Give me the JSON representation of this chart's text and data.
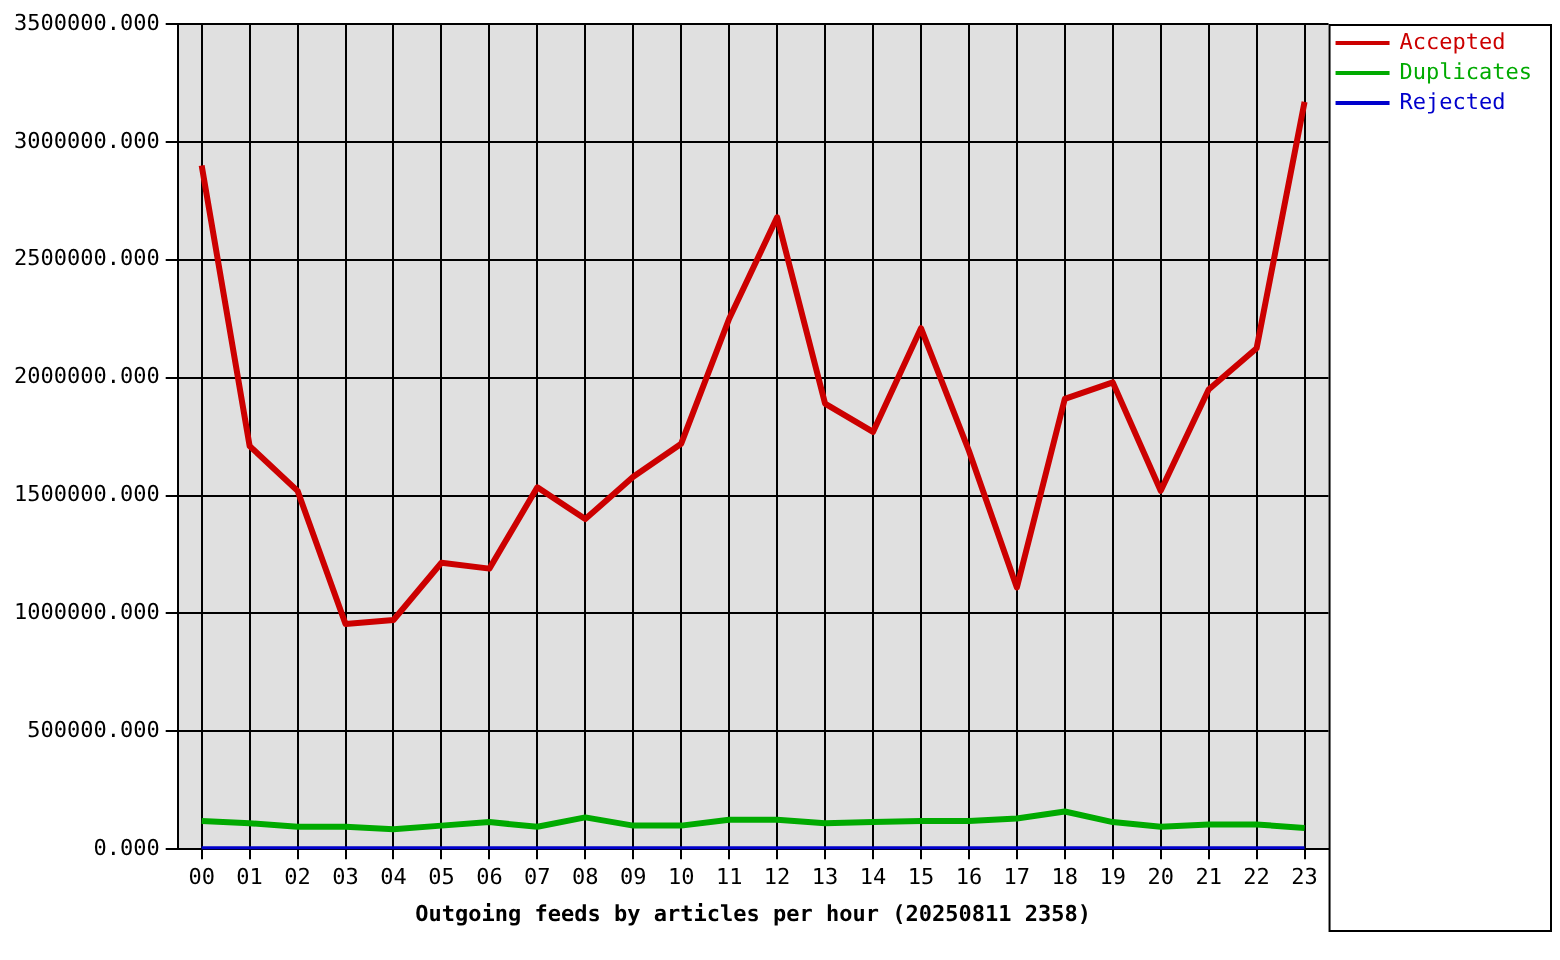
{
  "chart_data": {
    "type": "line",
    "xlabel": "Outgoing feeds by articles per hour (20250811 2358)",
    "categories": [
      "00",
      "01",
      "02",
      "03",
      "04",
      "05",
      "06",
      "07",
      "08",
      "09",
      "10",
      "11",
      "12",
      "13",
      "14",
      "15",
      "16",
      "17",
      "18",
      "19",
      "20",
      "21",
      "22",
      "23"
    ],
    "series": [
      {
        "name": "Accepted",
        "color": "#cc0000",
        "values": [
          2900000,
          1710000,
          1520000,
          955000,
          972000,
          1215000,
          1190000,
          1535000,
          1400000,
          1580000,
          1720000,
          2250000,
          2680000,
          1890000,
          1770000,
          2210000,
          1690000,
          1110000,
          1910000,
          1980000,
          1520000,
          1950000,
          2125000,
          3170000
        ]
      },
      {
        "name": "Duplicates",
        "color": "#00aa00",
        "values": [
          120000,
          110000,
          95000,
          95000,
          85000,
          100000,
          115000,
          95000,
          135000,
          100000,
          100000,
          125000,
          125000,
          110000,
          115000,
          120000,
          120000,
          130000,
          160000,
          115000,
          95000,
          105000,
          105000,
          90000
        ]
      },
      {
        "name": "Rejected",
        "color": "#0000cc",
        "values": [
          0,
          0,
          0,
          0,
          0,
          0,
          0,
          0,
          0,
          0,
          0,
          0,
          0,
          0,
          0,
          0,
          0,
          0,
          0,
          0,
          0,
          0,
          0,
          0
        ]
      }
    ],
    "ylim": [
      0,
      3500000
    ],
    "yticks": [
      {
        "value": 0,
        "label": "0.000"
      },
      {
        "value": 500000,
        "label": "500000.000"
      },
      {
        "value": 1000000,
        "label": "1000000.000"
      },
      {
        "value": 1500000,
        "label": "1500000.000"
      },
      {
        "value": 2000000,
        "label": "2000000.000"
      },
      {
        "value": 2500000,
        "label": "2500000.000"
      },
      {
        "value": 3000000,
        "label": "3000000.000"
      },
      {
        "value": 3500000,
        "label": "3500000.000"
      }
    ],
    "grid": true,
    "legend": "top right"
  }
}
